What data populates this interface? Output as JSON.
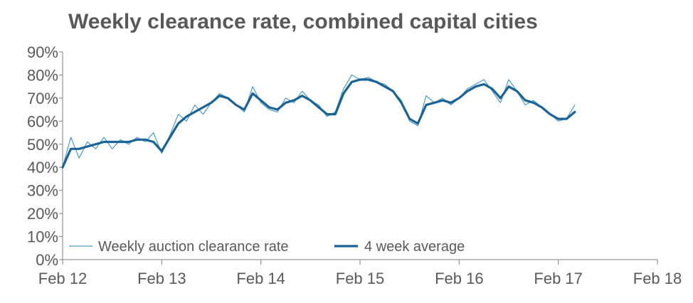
{
  "chart_data": {
    "type": "line",
    "title": "Weekly clearance rate, combined capital cities",
    "xlabel": "",
    "ylabel": "",
    "x_tick_labels": [
      "Feb 12",
      "Feb 13",
      "Feb 14",
      "Feb 15",
      "Feb 16",
      "Feb 17",
      "Feb 18"
    ],
    "y_tick_labels": [
      "0%",
      "10%",
      "20%",
      "30%",
      "40%",
      "50%",
      "60%",
      "70%",
      "80%",
      "90%"
    ],
    "xlim": [
      "2012-02",
      "2018-02"
    ],
    "ylim": [
      0,
      90
    ],
    "y_unit": "%",
    "grid": false,
    "legend_position": "bottom-left",
    "colors": {
      "weekly": "#4a9ac4",
      "average": "#1a6396",
      "axis": "#808080",
      "text": "#595959"
    },
    "series": [
      {
        "name": "Weekly auction clearance rate",
        "style": "thin",
        "points": [
          [
            "2012-02",
            40
          ],
          [
            "2012-03",
            53
          ],
          [
            "2012-04",
            44
          ],
          [
            "2012-05",
            51
          ],
          [
            "2012-06",
            48
          ],
          [
            "2012-07",
            53
          ],
          [
            "2012-08",
            48
          ],
          [
            "2012-09",
            52
          ],
          [
            "2012-10",
            50
          ],
          [
            "2012-11",
            53
          ],
          [
            "2012-12",
            51
          ],
          [
            "2013-01",
            55
          ],
          [
            "2013-02",
            46
          ],
          [
            "2013-03",
            54
          ],
          [
            "2013-04",
            63
          ],
          [
            "2013-05",
            60
          ],
          [
            "2013-06",
            67
          ],
          [
            "2013-07",
            63
          ],
          [
            "2013-08",
            68
          ],
          [
            "2013-09",
            72
          ],
          [
            "2013-10",
            70
          ],
          [
            "2013-11",
            67
          ],
          [
            "2013-12",
            64
          ],
          [
            "2014-01",
            75
          ],
          [
            "2014-02",
            68
          ],
          [
            "2014-03",
            65
          ],
          [
            "2014-04",
            64
          ],
          [
            "2014-05",
            70
          ],
          [
            "2014-06",
            68
          ],
          [
            "2014-07",
            73
          ],
          [
            "2014-08",
            69
          ],
          [
            "2014-09",
            67
          ],
          [
            "2014-10",
            62
          ],
          [
            "2014-11",
            64
          ],
          [
            "2014-12",
            74
          ],
          [
            "2015-01",
            80
          ],
          [
            "2015-02",
            78
          ],
          [
            "2015-03",
            79
          ],
          [
            "2015-04",
            77
          ],
          [
            "2015-05",
            76
          ],
          [
            "2015-06",
            73
          ],
          [
            "2015-07",
            69
          ],
          [
            "2015-08",
            60
          ],
          [
            "2015-09",
            58
          ],
          [
            "2015-10",
            71
          ],
          [
            "2015-11",
            68
          ],
          [
            "2015-12",
            70
          ],
          [
            "2016-01",
            67
          ],
          [
            "2016-02",
            70
          ],
          [
            "2016-03",
            74
          ],
          [
            "2016-04",
            76
          ],
          [
            "2016-05",
            78
          ],
          [
            "2016-06",
            73
          ],
          [
            "2016-07",
            68
          ],
          [
            "2016-08",
            78
          ],
          [
            "2016-09",
            73
          ],
          [
            "2016-10",
            67
          ],
          [
            "2016-11",
            69
          ],
          [
            "2016-12",
            66
          ],
          [
            "2017-01",
            63
          ],
          [
            "2017-02",
            60
          ],
          [
            "2017-03",
            61
          ],
          [
            "2017-04",
            67
          ]
        ]
      },
      {
        "name": "4 week average",
        "style": "thick",
        "points": [
          [
            "2012-02",
            40
          ],
          [
            "2012-03",
            48
          ],
          [
            "2012-04",
            48
          ],
          [
            "2012-05",
            49
          ],
          [
            "2012-06",
            50
          ],
          [
            "2012-07",
            51
          ],
          [
            "2012-08",
            51
          ],
          [
            "2012-09",
            51
          ],
          [
            "2012-10",
            51
          ],
          [
            "2012-11",
            52
          ],
          [
            "2012-12",
            52
          ],
          [
            "2013-01",
            51
          ],
          [
            "2013-02",
            47
          ],
          [
            "2013-03",
            53
          ],
          [
            "2013-04",
            59
          ],
          [
            "2013-05",
            62
          ],
          [
            "2013-06",
            64
          ],
          [
            "2013-07",
            66
          ],
          [
            "2013-08",
            68
          ],
          [
            "2013-09",
            71
          ],
          [
            "2013-10",
            70
          ],
          [
            "2013-11",
            67
          ],
          [
            "2013-12",
            65
          ],
          [
            "2014-01",
            72
          ],
          [
            "2014-02",
            69
          ],
          [
            "2014-03",
            66
          ],
          [
            "2014-04",
            65
          ],
          [
            "2014-05",
            68
          ],
          [
            "2014-06",
            69
          ],
          [
            "2014-07",
            71
          ],
          [
            "2014-08",
            69
          ],
          [
            "2014-09",
            66
          ],
          [
            "2014-10",
            63
          ],
          [
            "2014-11",
            63
          ],
          [
            "2014-12",
            72
          ],
          [
            "2015-01",
            77
          ],
          [
            "2015-02",
            78
          ],
          [
            "2015-03",
            78
          ],
          [
            "2015-04",
            77
          ],
          [
            "2015-05",
            75
          ],
          [
            "2015-06",
            73
          ],
          [
            "2015-07",
            68
          ],
          [
            "2015-08",
            61
          ],
          [
            "2015-09",
            59
          ],
          [
            "2015-10",
            67
          ],
          [
            "2015-11",
            68
          ],
          [
            "2015-12",
            69
          ],
          [
            "2016-01",
            68
          ],
          [
            "2016-02",
            70
          ],
          [
            "2016-03",
            73
          ],
          [
            "2016-04",
            75
          ],
          [
            "2016-05",
            76
          ],
          [
            "2016-06",
            74
          ],
          [
            "2016-07",
            70
          ],
          [
            "2016-08",
            75
          ],
          [
            "2016-09",
            73
          ],
          [
            "2016-10",
            69
          ],
          [
            "2016-11",
            68
          ],
          [
            "2016-12",
            66
          ],
          [
            "2017-01",
            63
          ],
          [
            "2017-02",
            61
          ],
          [
            "2017-03",
            61
          ],
          [
            "2017-04",
            64
          ]
        ]
      }
    ]
  }
}
